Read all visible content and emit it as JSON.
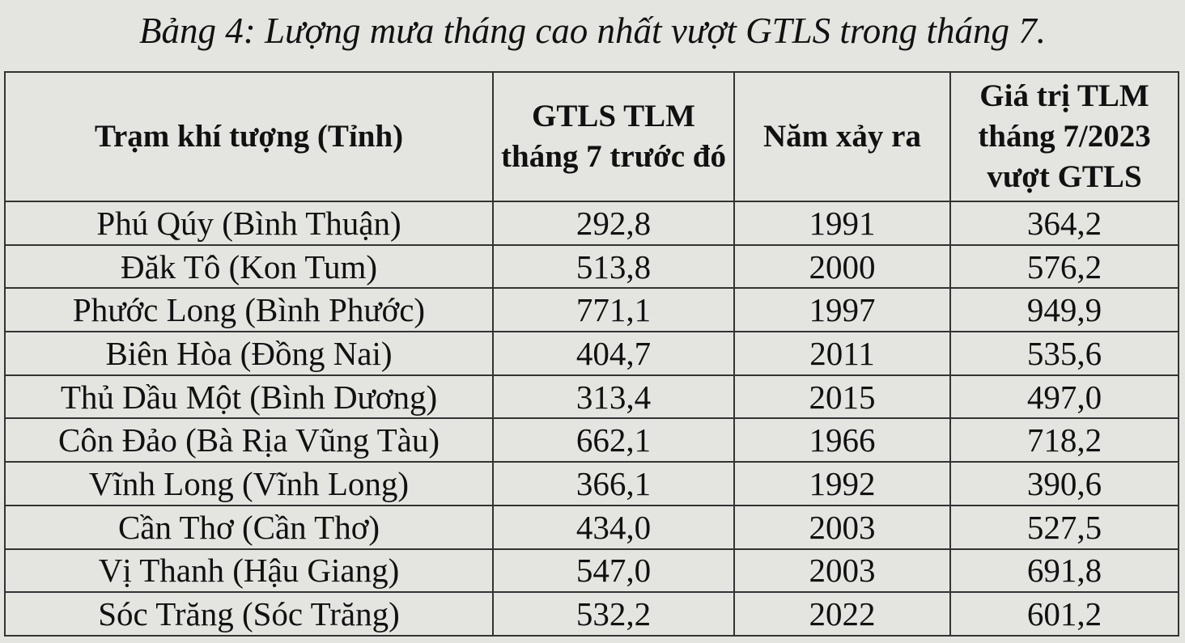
{
  "title": "Bảng 4: Lượng mưa tháng cao nhất vượt GTLS trong tháng 7.",
  "table": {
    "headers": [
      "Trạm khí tượng (Tỉnh)",
      "GTLS TLM tháng 7 trước đó",
      "Năm xảy ra",
      "Giá trị TLM tháng 7/2023 vượt GTLS"
    ],
    "rows": [
      [
        "Phú Qúy (Bình Thuận)",
        "292,8",
        "1991",
        "364,2"
      ],
      [
        "Đăk Tô (Kon Tum)",
        "513,8",
        "2000",
        "576,2"
      ],
      [
        "Phước Long (Bình Phước)",
        "771,1",
        "1997",
        "949,9"
      ],
      [
        "Biên Hòa (Đồng Nai)",
        "404,7",
        "2011",
        "535,6"
      ],
      [
        "Thủ Dầu Một (Bình Dương)",
        "313,4",
        "2015",
        "497,0"
      ],
      [
        "Côn Đảo (Bà Rịa Vũng Tàu)",
        "662,1",
        "1966",
        "718,2"
      ],
      [
        "Vĩnh Long (Vĩnh Long)",
        "366,1",
        "1992",
        "390,6"
      ],
      [
        "Cần Thơ (Cần Thơ)",
        "434,0",
        "2003",
        "527,5"
      ],
      [
        "Vị Thanh (Hậu Giang)",
        "547,0",
        "2003",
        "691,8"
      ],
      [
        "Sóc Trăng (Sóc Trăng)",
        "532,2",
        "2022",
        "601,2"
      ]
    ]
  }
}
